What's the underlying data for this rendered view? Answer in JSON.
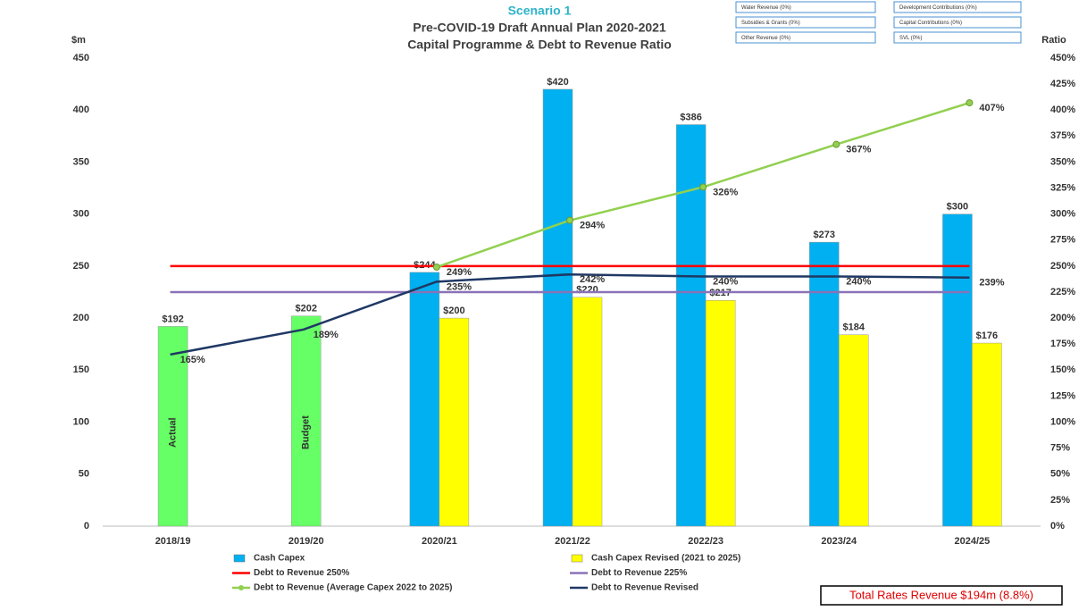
{
  "chart_data": {
    "type": "combo",
    "scenario": "Scenario 1",
    "title": "Pre-COVID-19 Draft Annual Plan 2020-2021",
    "subtitle": "Capital Programme & Debt to Revenue Ratio",
    "y_label": "$m",
    "y2_label": "Ratio",
    "categories": [
      "2018/19",
      "2019/20",
      "2020/21",
      "2021/22",
      "2022/23",
      "2023/24",
      "2024/25"
    ],
    "series": [
      {
        "type": "bar",
        "position": "center",
        "color": "#66ff66",
        "values": [
          192,
          202,
          null,
          null,
          null,
          null,
          null
        ],
        "value_labels": [
          "$192",
          "$202",
          null,
          null,
          null,
          null,
          null
        ],
        "bar_labels": [
          "Actual",
          "Budget",
          null,
          null,
          null,
          null,
          null
        ]
      },
      {
        "name": "Cash Capex",
        "type": "bar",
        "position": "left",
        "color": "#00b0f0",
        "values": [
          null,
          null,
          244,
          420,
          386,
          273,
          300
        ],
        "value_labels": [
          null,
          null,
          "$244",
          "$420",
          "$386",
          "$273",
          "$300"
        ]
      },
      {
        "name": "Cash Capex Revised (2021 to 2025)",
        "type": "bar",
        "position": "right",
        "color": "#ffff00",
        "values": [
          null,
          null,
          200,
          220,
          217,
          184,
          176
        ],
        "value_labels": [
          null,
          null,
          "$200",
          "$220",
          "$217",
          "$184",
          "$176"
        ]
      },
      {
        "name": "Debt to Revenue 250%",
        "type": "line",
        "axis": "y2",
        "color": "#ff0000",
        "values": [
          250,
          250,
          250,
          250,
          250,
          250,
          250
        ]
      },
      {
        "name": "Debt to Revenue 225%",
        "type": "line",
        "axis": "y2",
        "color": "#8a72b8",
        "values": [
          225,
          225,
          225,
          225,
          225,
          225,
          225
        ]
      },
      {
        "name": "Debt to Revenue (Average Capex 2022 to 2025)",
        "type": "line",
        "axis": "y2",
        "color": "#92d050",
        "marker": true,
        "values": [
          null,
          null,
          249,
          294,
          326,
          367,
          407
        ],
        "value_labels": [
          null,
          null,
          "249%",
          "294%",
          "326%",
          "367%",
          "407%"
        ]
      },
      {
        "name": "Debt to Revenue Revised",
        "type": "line",
        "axis": "y2",
        "color": "#1f3864",
        "values": [
          165,
          189,
          235,
          242,
          240,
          240,
          239
        ],
        "value_labels": [
          "165%",
          "189%",
          "235%",
          "242%",
          "240%",
          "240%",
          "239%"
        ]
      }
    ],
    "ylim": [
      0,
      450
    ],
    "yticks": [
      0,
      50,
      100,
      150,
      200,
      250,
      300,
      350,
      400,
      450
    ],
    "y2lim": [
      0,
      450
    ],
    "y2ticks": [
      {
        "value": 0,
        "label": "0%"
      },
      {
        "value": 25,
        "label": "25%"
      },
      {
        "value": 50,
        "label": "50%"
      },
      {
        "value": 75,
        "label": "75%"
      },
      {
        "value": 100,
        "label": "100%"
      },
      {
        "value": 125,
        "label": "125%"
      },
      {
        "value": 150,
        "label": "150%"
      },
      {
        "value": 175,
        "label": "175%"
      },
      {
        "value": 200,
        "label": "200%"
      },
      {
        "value": 225,
        "label": "225%"
      },
      {
        "value": 250,
        "label": "250%"
      },
      {
        "value": 275,
        "label": "275%"
      },
      {
        "value": 300,
        "label": "300%"
      },
      {
        "value": 325,
        "label": "325%"
      },
      {
        "value": 350,
        "label": "350%"
      },
      {
        "value": 375,
        "label": "375%"
      },
      {
        "value": 400,
        "label": "400%"
      },
      {
        "value": 425,
        "label": "425%"
      },
      {
        "value": 450,
        "label": "450%"
      }
    ],
    "grid": false,
    "legend": "bottom"
  },
  "panels": {
    "boxes": [
      "Water Revenue (0%)",
      "Development Contributions (0%)",
      "Subsidies & Grants (0%)",
      "Capital Contributions (0%)",
      "Other Revenue (0%)",
      "SVL (0%)"
    ],
    "total": "Total Rates Revenue $194m (8.8%)"
  }
}
